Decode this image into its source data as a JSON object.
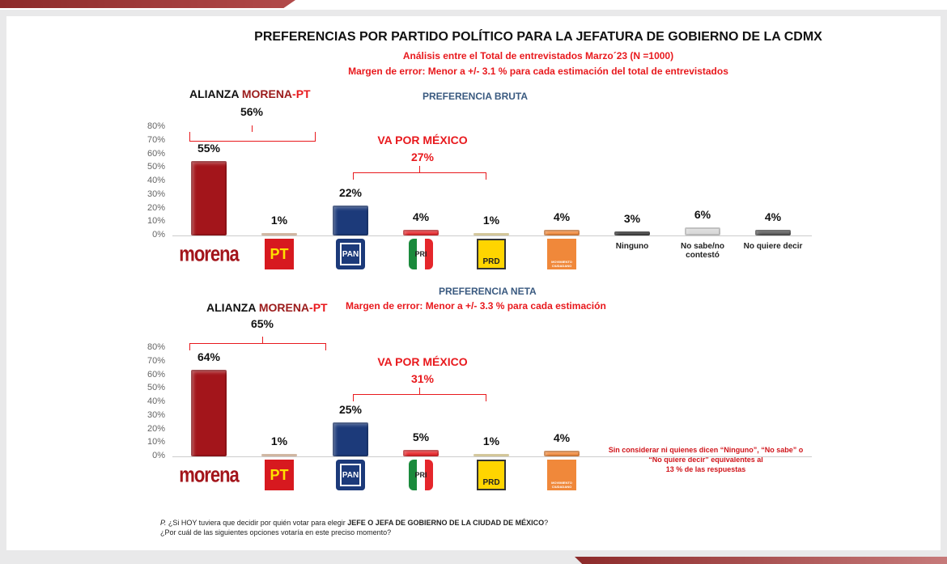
{
  "title": "PREFERENCIAS POR PARTIDO POLÍTICO PARA LA JEFATURA DE GOBIERNO DE LA CDMX",
  "subtitle1": "Análisis entre el Total de entrevistados Marzo´23  (N =1000)",
  "subtitle2": "Margen de error: Menor a +/- 3.1 %  para cada estimación del total de entrevistados",
  "alliance": {
    "prefix": "ALIANZA ",
    "morena": "MORENA",
    "dash": "-",
    "pt": "PT"
  },
  "va_por_mexico": "VA POR MÉXICO",
  "colors": {
    "morena": "#a3151b",
    "pt": "#f2c9a8",
    "pan": "#1c3a7a",
    "pri": "#e5262b",
    "prd": "#f6e39c",
    "mc": "#f0883a",
    "ninguno": "#2a2a2a",
    "nosabe": "#d9d9d9",
    "noquiere": "#555555"
  },
  "logos": {
    "morena": "morena",
    "pt": "PT",
    "pan": "PAN",
    "pri": "PRI",
    "prd": "PRD",
    "mc": "MOVIMIENTO CIUDADANO"
  },
  "chart_data": [
    {
      "type": "bar",
      "title": "PREFERENCIA BRUTA",
      "ylim": [
        0,
        80
      ],
      "yticks": [
        "0%",
        "10%",
        "20%",
        "30%",
        "40%",
        "50%",
        "60%",
        "70%",
        "80%"
      ],
      "categories": [
        "MORENA",
        "PT",
        "PAN",
        "PRI",
        "PRD",
        "MC",
        "Ninguno",
        "No sabe/no contestó",
        "No quiere decir"
      ],
      "values": [
        55,
        1,
        22,
        4,
        1,
        4,
        3,
        6,
        4
      ],
      "labels": [
        "55%",
        "1%",
        "22%",
        "4%",
        "1%",
        "4%",
        "3%",
        "6%",
        "4%"
      ],
      "alliance_total": "56%",
      "vpm_total": "27%"
    },
    {
      "type": "bar",
      "title": "PREFERENCIA NETA",
      "margin": "Margen de error: Menor a +/- 3.3 %  para cada estimación",
      "ylim": [
        0,
        80
      ],
      "yticks": [
        "0%",
        "10%",
        "20%",
        "30%",
        "40%",
        "50%",
        "60%",
        "70%",
        "80%"
      ],
      "categories": [
        "MORENA",
        "PT",
        "PAN",
        "PRI",
        "PRD",
        "MC"
      ],
      "values": [
        64,
        1,
        25,
        5,
        1,
        4
      ],
      "labels": [
        "64%",
        "1%",
        "25%",
        "5%",
        "1%",
        "4%"
      ],
      "alliance_total": "65%",
      "vpm_total": "31%",
      "note": [
        "Sin considerar  ni quienes dicen “Ninguno”, “No sabe” o",
        "“No quiere decir” equivalentes al",
        "13 % de las respuestas"
      ]
    }
  ],
  "question": {
    "p": "P.",
    "line1a": " ¿Si HOY tuviera que decidir por quién votar para elegir ",
    "line1b": "JEFE O JEFA DE GOBIERNO DE LA CIUDAD DE MÉXICO",
    "line1c": "?",
    "line2": "¿Por cuál de las siguientes opciones votaría en este preciso momento?"
  }
}
